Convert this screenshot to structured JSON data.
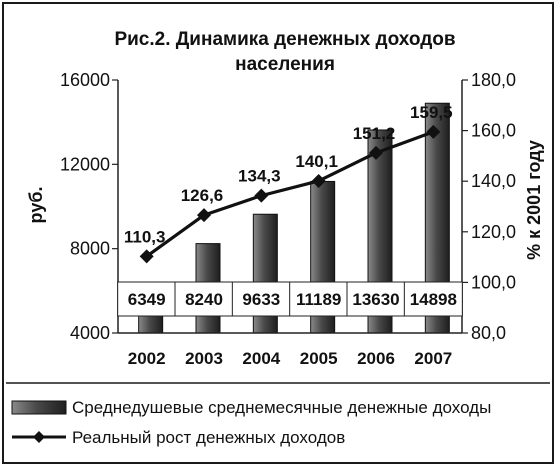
{
  "chart_data": {
    "type": "bar",
    "title_line1": "Рис.2. Динамика денежных доходов",
    "title_line2": "населения",
    "categories": [
      "2002",
      "2003",
      "2004",
      "2005",
      "2006",
      "2007"
    ],
    "series": [
      {
        "name": "Среднедушевые среднемесячные денежные доходы",
        "type": "bar",
        "axis": "left",
        "values": [
          6349,
          8240,
          9633,
          11189,
          13630,
          14898
        ],
        "value_labels": [
          "6349",
          "8240",
          "9633",
          "11189",
          "13630",
          "14898"
        ],
        "color": "#555555"
      },
      {
        "name": "Реальный рост денежных доходов",
        "type": "line",
        "axis": "right",
        "values": [
          110.3,
          126.6,
          134.3,
          140.1,
          151.2,
          159.5
        ],
        "value_labels": [
          "110,3",
          "126,6",
          "134,3",
          "140,1",
          "151,2",
          "159,5"
        ],
        "color": "#111111"
      }
    ],
    "y_left": {
      "label": "руб.",
      "min": 4000,
      "max": 16000,
      "ticks": [
        4000,
        8000,
        12000,
        16000
      ],
      "tick_labels": [
        "4000",
        "8000",
        "12000",
        "16000"
      ]
    },
    "y_right": {
      "label": "% к 2001 году",
      "min": 80,
      "max": 180,
      "ticks": [
        80,
        100,
        120,
        140,
        160,
        180
      ],
      "tick_labels": [
        "80,0",
        "100,0",
        "120,0",
        "140,0",
        "160,0",
        "180,0"
      ]
    },
    "legend_position": "bottom",
    "grid": false
  }
}
